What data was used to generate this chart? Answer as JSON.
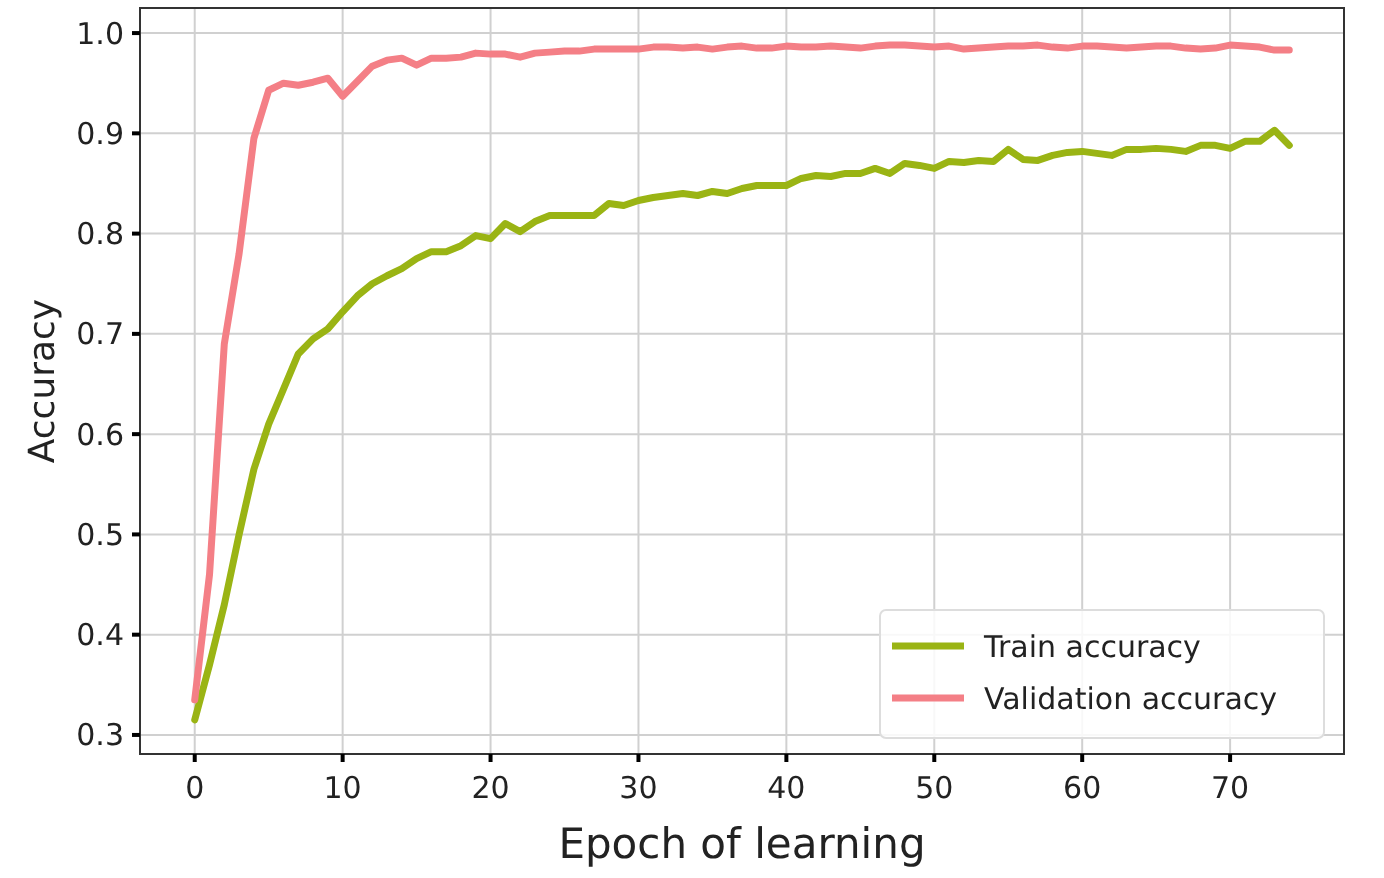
{
  "chart_data": {
    "type": "line",
    "xlabel": "Epoch of learning",
    "ylabel": "Accuracy",
    "x": [
      0,
      1,
      2,
      3,
      4,
      5,
      6,
      7,
      8,
      9,
      10,
      11,
      12,
      13,
      14,
      15,
      16,
      17,
      18,
      19,
      20,
      21,
      22,
      23,
      24,
      25,
      26,
      27,
      28,
      29,
      30,
      31,
      32,
      33,
      34,
      35,
      36,
      37,
      38,
      39,
      40,
      41,
      42,
      43,
      44,
      45,
      46,
      47,
      48,
      49,
      50,
      51,
      52,
      53,
      54,
      55,
      56,
      57,
      58,
      59,
      60,
      61,
      62,
      63,
      64,
      65,
      66,
      67,
      68,
      69,
      70,
      71,
      72,
      73,
      74
    ],
    "series": [
      {
        "name": "Train accuracy",
        "color": "#9ab414",
        "values": [
          0.315,
          0.37,
          0.43,
          0.5,
          0.565,
          0.61,
          0.645,
          0.68,
          0.695,
          0.705,
          0.722,
          0.738,
          0.75,
          0.758,
          0.765,
          0.775,
          0.782,
          0.782,
          0.788,
          0.798,
          0.795,
          0.81,
          0.802,
          0.812,
          0.818,
          0.818,
          0.818,
          0.818,
          0.83,
          0.828,
          0.833,
          0.836,
          0.838,
          0.84,
          0.838,
          0.842,
          0.84,
          0.845,
          0.848,
          0.848,
          0.848,
          0.855,
          0.858,
          0.857,
          0.86,
          0.86,
          0.865,
          0.86,
          0.87,
          0.868,
          0.865,
          0.872,
          0.871,
          0.873,
          0.872,
          0.884,
          0.874,
          0.873,
          0.878,
          0.881,
          0.882,
          0.88,
          0.878,
          0.884,
          0.884,
          0.885,
          0.884,
          0.882,
          0.888,
          0.888,
          0.885,
          0.892,
          0.892,
          0.903,
          0.888
        ]
      },
      {
        "name": "Validation accuracy",
        "color": "#f47f86",
        "values": [
          0.335,
          0.46,
          0.69,
          0.78,
          0.895,
          0.943,
          0.95,
          0.948,
          0.951,
          0.955,
          0.937,
          0.952,
          0.967,
          0.973,
          0.975,
          0.968,
          0.975,
          0.975,
          0.976,
          0.98,
          0.979,
          0.979,
          0.976,
          0.98,
          0.981,
          0.982,
          0.982,
          0.984,
          0.984,
          0.984,
          0.984,
          0.986,
          0.986,
          0.985,
          0.986,
          0.984,
          0.986,
          0.987,
          0.985,
          0.985,
          0.987,
          0.986,
          0.986,
          0.987,
          0.986,
          0.985,
          0.987,
          0.988,
          0.988,
          0.987,
          0.986,
          0.987,
          0.984,
          0.985,
          0.986,
          0.987,
          0.987,
          0.988,
          0.986,
          0.985,
          0.987,
          0.987,
          0.986,
          0.985,
          0.986,
          0.987,
          0.987,
          0.985,
          0.984,
          0.985,
          0.988,
          0.987,
          0.986,
          0.983,
          0.983
        ]
      }
    ],
    "xlim": [
      -3.7,
      77.7
    ],
    "ylim": [
      0.281,
      1.025
    ],
    "xticks": [
      0,
      10,
      20,
      30,
      40,
      50,
      60,
      70
    ],
    "yticks": [
      {
        "value": 0.3,
        "label": "0.3"
      },
      {
        "value": 0.4,
        "label": "0.4"
      },
      {
        "value": 0.5,
        "label": "0.5"
      },
      {
        "value": 0.6,
        "label": "0.6"
      },
      {
        "value": 0.7,
        "label": "0.7"
      },
      {
        "value": 0.8,
        "label": "0.8"
      },
      {
        "value": 0.9,
        "label": "0.9"
      },
      {
        "value": 1.0,
        "label": "1.0"
      }
    ],
    "grid": true,
    "legend": "bottom right",
    "marker": "none",
    "line_style": "solid"
  }
}
